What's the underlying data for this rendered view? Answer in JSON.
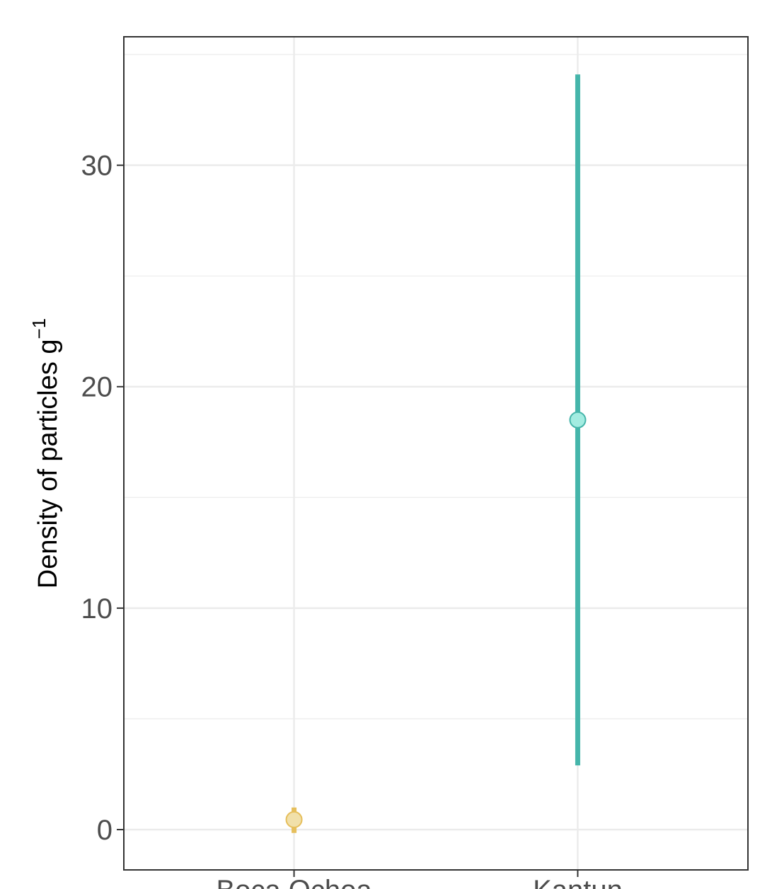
{
  "chart_data": {
    "type": "pointrange",
    "ylabel": "Density of particles  g",
    "ylabel_superscript": "−1",
    "categories": [
      "Boca Ochoa",
      "Kantun"
    ],
    "values": [
      0.45,
      18.5
    ],
    "lower": [
      -0.15,
      2.9
    ],
    "upper": [
      1.0,
      34.1
    ],
    "point_colors": [
      "#f1e0aa",
      "#a3ece1"
    ],
    "line_colors": [
      "#e6bf5c",
      "#45b5aa"
    ],
    "ylim": [
      -1.82,
      35.8
    ],
    "yticks": [
      0,
      10,
      20,
      30
    ],
    "minor_yticks": [
      5,
      15,
      25,
      35
    ],
    "grid": true
  }
}
